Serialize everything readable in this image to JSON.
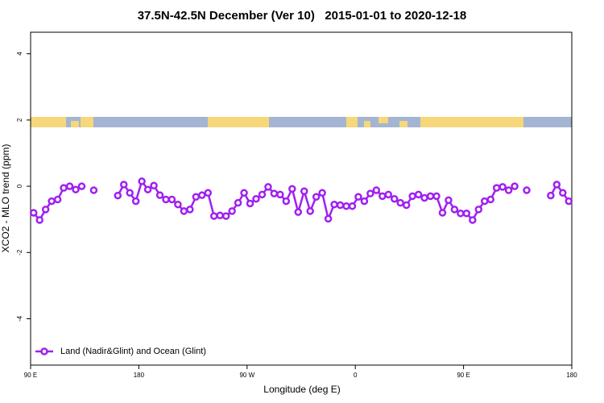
{
  "chart_data": {
    "type": "line",
    "title": "37.5N-42.5N December (Ver 10)   2015-01-01 to 2020-12-18",
    "xlabel": "Longitude (deg E)",
    "ylabel": "XCO2 - MLO trend (ppm)",
    "xlim": [
      90,
      540
    ],
    "xticks": [
      {
        "value": 90,
        "label": "90 E"
      },
      180,
      {
        "value": 270,
        "label": "90 W"
      },
      {
        "value": 360,
        "label": "0"
      },
      {
        "value": 450,
        "label": "90 E"
      },
      {
        "value": 540,
        "label": "180"
      }
    ],
    "ylim": [
      -5.4,
      4.65
    ],
    "yticks": [
      4,
      2,
      0,
      -2,
      -4
    ],
    "legend": "bottom-left",
    "x": [
      92.5,
      97.5,
      102.5,
      107.5,
      112.5,
      117.5,
      122.5,
      127.5,
      132.5,
      137.5,
      142.5,
      147.5,
      152.5,
      157.5,
      162.5,
      167.5,
      172.5,
      177.5,
      182.5,
      187.5,
      192.5,
      197.5,
      202.5,
      207.5,
      212.5,
      217.5,
      222.5,
      227.5,
      232.5,
      237.5,
      242.5,
      247.5,
      252.5,
      257.5,
      262.5,
      267.5,
      272.5,
      277.5,
      282.5,
      287.5,
      292.5,
      297.5,
      302.5,
      307.5,
      312.5,
      317.5,
      322.5,
      327.5,
      332.5,
      337.5,
      342.5,
      347.5,
      352.5,
      357.5,
      362.5,
      367.5,
      372.5,
      377.5,
      382.5,
      387.5,
      392.5,
      397.5,
      402.5,
      407.5,
      412.5,
      417.5,
      422.5,
      427.5,
      432.5,
      437.5,
      442.5,
      447.5,
      452.5,
      457.5,
      462.5,
      467.5,
      472.5,
      477.5,
      482.5,
      487.5,
      492.5,
      497.5,
      502.5,
      507.5,
      512.5,
      517.5,
      522.5,
      527.5,
      532.5,
      537.5
    ],
    "series": [
      {
        "name": "Land (Nadir&Glint) and Ocean (Glint)",
        "color": "#a020f0",
        "values": [
          -0.8,
          -1.02,
          -0.7,
          -0.45,
          -0.4,
          -0.05,
          0.0,
          -0.1,
          0.0,
          null,
          -0.12,
          null,
          null,
          null,
          -0.28,
          0.05,
          -0.2,
          -0.45,
          0.15,
          -0.1,
          0.02,
          -0.27,
          -0.4,
          -0.4,
          -0.55,
          -0.75,
          -0.7,
          -0.32,
          -0.27,
          -0.2,
          -0.9,
          -0.88,
          -0.9,
          -0.75,
          -0.5,
          -0.2,
          -0.52,
          -0.38,
          -0.25,
          -0.02,
          -0.22,
          -0.25,
          -0.45,
          -0.08,
          -0.78,
          -0.15,
          -0.75,
          -0.32,
          -0.2,
          -0.98,
          -0.55,
          -0.57,
          -0.6,
          -0.6,
          -0.32,
          -0.45,
          -0.22,
          -0.12,
          -0.3,
          -0.25,
          -0.38,
          -0.5,
          -0.57,
          -0.3,
          -0.25,
          -0.35,
          -0.3,
          -0.3,
          -0.8,
          -0.42,
          -0.7,
          -0.82,
          -0.82,
          -1.02,
          -0.7,
          -0.45,
          -0.4,
          -0.05,
          -0.02,
          -0.12,
          0.0,
          null,
          -0.12,
          null,
          null,
          null,
          -0.28,
          0.05,
          -0.2,
          -0.45
        ]
      }
    ]
  }
}
